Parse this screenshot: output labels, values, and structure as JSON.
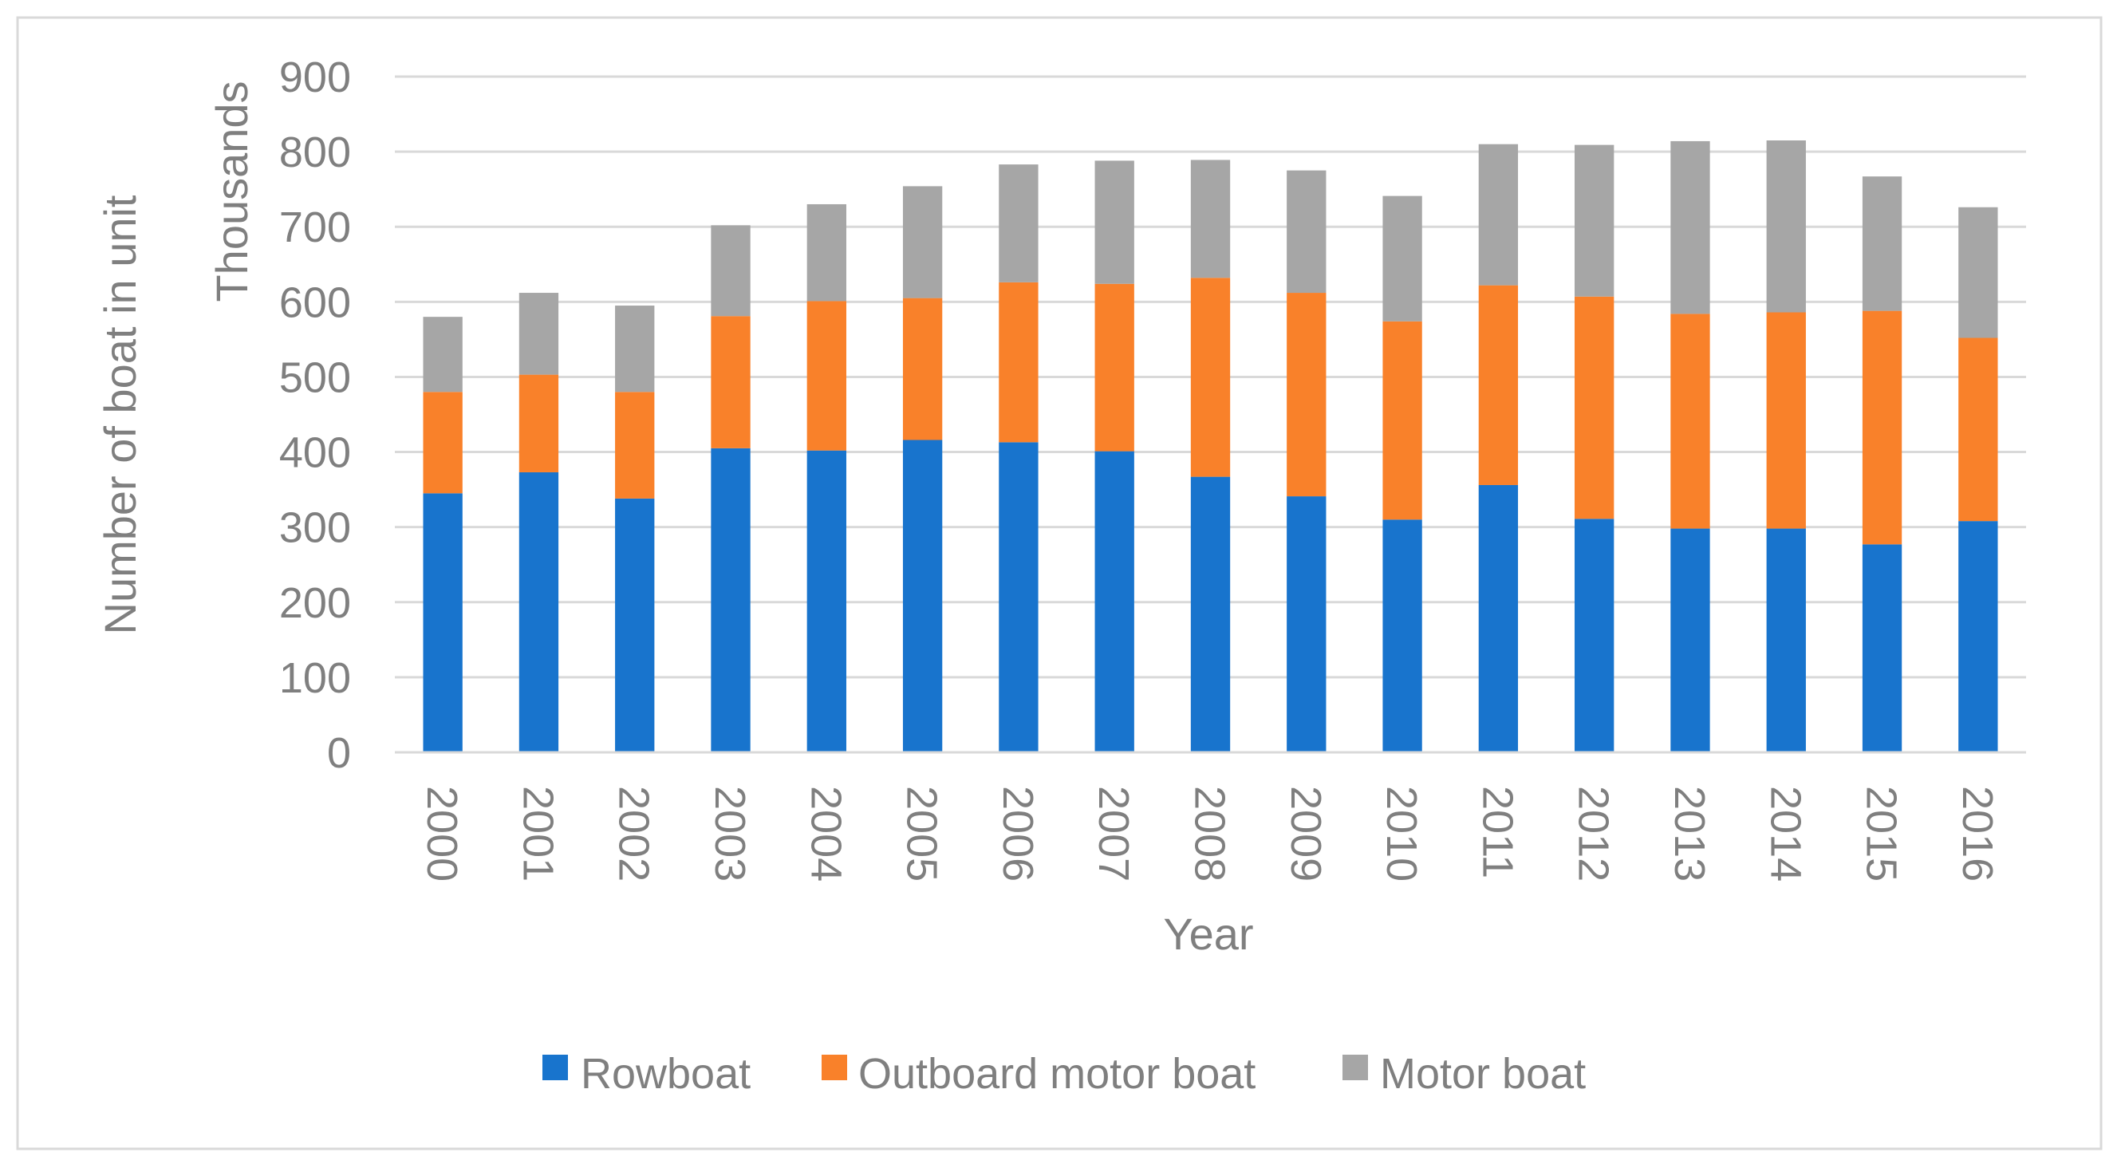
{
  "chart_data": {
    "type": "bar",
    "stacked": true,
    "categories": [
      "2000",
      "2001",
      "2002",
      "2003",
      "2004",
      "2005",
      "2006",
      "2007",
      "2008",
      "2009",
      "2010",
      "2011",
      "2012",
      "2013",
      "2014",
      "2015",
      "2016"
    ],
    "series": [
      {
        "name": "Rowboat",
        "color": "#1874cd",
        "values": [
          345,
          373,
          338,
          405,
          402,
          416,
          413,
          401,
          367,
          341,
          310,
          356,
          311,
          298,
          298,
          277,
          308
        ]
      },
      {
        "name": "Outboard motor boat",
        "color": "#f9812a",
        "values": [
          135,
          130,
          142,
          176,
          199,
          189,
          213,
          223,
          265,
          271,
          264,
          266,
          296,
          286,
          288,
          311,
          244
        ]
      },
      {
        "name": "Motor boat",
        "color": "#a6a6a6",
        "values": [
          100,
          109,
          115,
          121,
          129,
          149,
          157,
          164,
          157,
          163,
          167,
          188,
          202,
          230,
          229,
          179,
          174
        ]
      }
    ],
    "title": "",
    "xlabel": "Year",
    "ylabel": "Number of boat in unit",
    "yunit_label": "Thousands",
    "ylim": [
      0,
      900
    ],
    "yticks": [
      "0",
      "100",
      "200",
      "300",
      "400",
      "500",
      "600",
      "700",
      "800",
      "900"
    ],
    "grid": true,
    "legend_position": "bottom",
    "legend": [
      "Rowboat",
      "Outboard motor boat",
      "Motor boat"
    ]
  }
}
